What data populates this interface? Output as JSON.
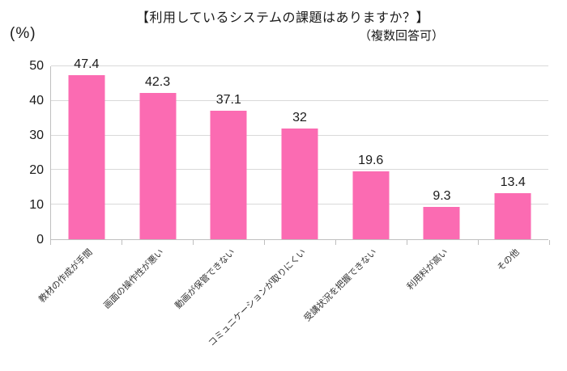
{
  "chart_data": {
    "type": "bar",
    "title": "【利用しているシステムの課題はありますか？】",
    "subtitle": "（複数回答可）",
    "unit_label": "(%)",
    "categories": [
      "教材の作成が手間",
      "画面の操作性が悪い",
      "動画が保管できない",
      "コミュニケーションが取りにくい",
      "受講状況を把握できない",
      "利用料が高い",
      "その他"
    ],
    "values": [
      47.4,
      42.3,
      37.1,
      32,
      19.6,
      9.3,
      13.4
    ],
    "value_labels": [
      "47.4",
      "42.3",
      "37.1",
      "32",
      "19.6",
      "9.3",
      "13.4"
    ],
    "xlabel": "",
    "ylabel": "(%)",
    "ylim": [
      0,
      50
    ],
    "yticks": [
      0,
      10,
      20,
      30,
      40,
      50
    ],
    "grid": true,
    "legend": "none",
    "bar_color": "#fb6bb2",
    "gridline_color": "#d9d9d9",
    "axis_color": "#bfbfbf",
    "text_color": "#1a1a1a",
    "category_label_rotation_deg": 45
  }
}
